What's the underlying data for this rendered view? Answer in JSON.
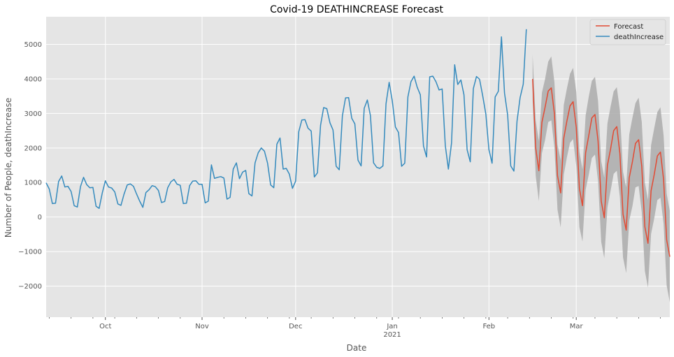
{
  "chart_data": {
    "type": "line",
    "title": "Covid-19 DEATHINCREASE Forecast",
    "xlabel": "Date",
    "ylabel": "Number of People, deathIncrease",
    "x_ticks": [
      {
        "date": "2020-10-01",
        "label": "Oct",
        "sublabel": ""
      },
      {
        "date": "2020-11-01",
        "label": "Nov",
        "sublabel": ""
      },
      {
        "date": "2020-12-01",
        "label": "Dec",
        "sublabel": ""
      },
      {
        "date": "2021-01-01",
        "label": "Jan",
        "sublabel": "2021"
      },
      {
        "date": "2021-02-01",
        "label": "Feb",
        "sublabel": ""
      },
      {
        "date": "2021-03-01",
        "label": "Mar",
        "sublabel": ""
      }
    ],
    "xlim": [
      "2020-09-12",
      "2021-03-31"
    ],
    "ylim": [
      -2900,
      5800
    ],
    "y_ticks": [
      -2000,
      -1000,
      0,
      1000,
      2000,
      3000,
      4000,
      5000
    ],
    "grid": true,
    "legend_position": "top-right",
    "colors": {
      "forecast": "#E24A33",
      "deathIncrease": "#348ABD",
      "confidence_band": "#a8a8a8",
      "plot_background": "#E5E5E5",
      "grid": "#ffffff"
    },
    "series": [
      {
        "name": "deathIncrease",
        "start_date": "2020-09-12",
        "values": [
          990,
          810,
          390,
          400,
          1030,
          1190,
          870,
          890,
          740,
          330,
          290,
          880,
          1150,
          940,
          850,
          860,
          310,
          250,
          700,
          1050,
          870,
          840,
          730,
          380,
          340,
          670,
          930,
          960,
          890,
          670,
          460,
          280,
          710,
          790,
          910,
          880,
          770,
          420,
          450,
          850,
          1020,
          1090,
          950,
          920,
          390,
          400,
          910,
          1040,
          1050,
          950,
          950,
          410,
          460,
          1510,
          1120,
          1150,
          1170,
          1130,
          520,
          570,
          1390,
          1570,
          1110,
          1300,
          1350,
          680,
          610,
          1570,
          1860,
          2000,
          1910,
          1560,
          930,
          850,
          2110,
          2290,
          1390,
          1410,
          1240,
          830,
          1040,
          2470,
          2810,
          2820,
          2570,
          2490,
          1160,
          1280,
          2660,
          3170,
          3140,
          2730,
          2520,
          1470,
          1370,
          2930,
          3450,
          3460,
          2860,
          2700,
          1650,
          1480,
          3150,
          3390,
          2940,
          1570,
          1440,
          1410,
          1480,
          3280,
          3900,
          3360,
          2610,
          2450,
          1470,
          1560,
          3480,
          3920,
          4080,
          3760,
          3540,
          2060,
          1740,
          4060,
          4080,
          3920,
          3680,
          3710,
          2070,
          1390,
          2140,
          4410,
          3840,
          3970,
          3540,
          1950,
          1600,
          3720,
          4070,
          3990,
          3510,
          2980,
          1950,
          1560,
          3480,
          3640,
          5220,
          3590,
          2950,
          1480,
          1330,
          2780,
          3460,
          3850,
          5440
        ]
      },
      {
        "name": "Forecast",
        "start_date": "2021-02-15",
        "values": [
          4000,
          2000,
          1340,
          2740,
          3180,
          3650,
          3740,
          2990,
          1200,
          700,
          2290,
          2780,
          3220,
          3340,
          2600,
          830,
          330,
          1860,
          2350,
          2870,
          2970,
          2200,
          460,
          -20,
          1500,
          1970,
          2500,
          2620,
          1840,
          80,
          -380,
          1140,
          1600,
          2130,
          2240,
          1470,
          -280,
          -760,
          760,
          1230,
          1770,
          1880,
          1090,
          -660,
          -1150
        ],
        "lower": [
          3400,
          1200,
          460,
          1850,
          2230,
          2750,
          2800,
          2000,
          210,
          -300,
          1230,
          1730,
          2150,
          2260,
          1480,
          -290,
          -710,
          790,
          1220,
          1710,
          1810,
          1040,
          -720,
          -1190,
          270,
          760,
          1250,
          1340,
          570,
          -1170,
          -1620,
          -100,
          310,
          860,
          900,
          140,
          -1560,
          -2040,
          -490,
          -40,
          490,
          560,
          -190,
          -1980,
          -2470
        ],
        "upper": [
          4700,
          2800,
          2200,
          3600,
          4000,
          4500,
          4650,
          3900,
          2100,
          1650,
          3250,
          3720,
          4150,
          4320,
          3630,
          1900,
          1380,
          2940,
          3480,
          3940,
          4060,
          3360,
          1620,
          1140,
          2710,
          3200,
          3640,
          3760,
          3080,
          1310,
          860,
          2390,
          2870,
          3300,
          3460,
          2750,
          1000,
          500,
          2080,
          2570,
          3040,
          3180,
          2370,
          680,
          180
        ]
      }
    ]
  }
}
